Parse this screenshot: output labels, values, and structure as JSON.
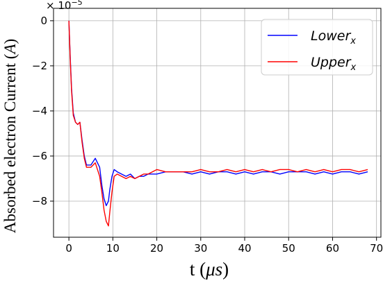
{
  "chart_data": {
    "type": "line",
    "xlabel_main": "t (",
    "xlabel_unit": "μs",
    "xlabel_close": ")",
    "ylabel": "Absorbed electron Current (",
    "ylabel_unit": "A",
    "ylabel_close": ")",
    "y_scale_base": "× 10",
    "y_scale_exp": "−5",
    "xlim": [
      -3.5,
      71
    ],
    "ylim": [
      -9.6,
      0.55
    ],
    "x_ticks": [
      0,
      10,
      20,
      30,
      40,
      50,
      60,
      70
    ],
    "x_tick_labels": [
      "0",
      "10",
      "20",
      "30",
      "40",
      "50",
      "60",
      "70"
    ],
    "y_ticks": [
      0,
      -2,
      -4,
      -6,
      -8
    ],
    "y_tick_labels": [
      "0",
      "−2",
      "−4",
      "−6",
      "−8"
    ],
    "grid": true,
    "legend_position": "top-right",
    "series": [
      {
        "name_main": "Lower",
        "name_sub": "x",
        "color": "#0000ff",
        "x": [
          0,
          0.3,
          0.6,
          1,
          1.5,
          2,
          2.5,
          3,
          3.5,
          4,
          5,
          6,
          6.5,
          7,
          7.5,
          8,
          8.5,
          9,
          9.3,
          9.8,
          10.3,
          11,
          12,
          13,
          14,
          15,
          16,
          17,
          18,
          19,
          20,
          22,
          24,
          26,
          28,
          30,
          32,
          34,
          36,
          38,
          40,
          42,
          44,
          46,
          48,
          50,
          52,
          54,
          56,
          58,
          60,
          62,
          64,
          66,
          68
        ],
        "values": [
          0,
          -1.6,
          -3.0,
          -4.1,
          -4.5,
          -4.6,
          -4.5,
          -5.3,
          -6.0,
          -6.4,
          -6.4,
          -6.1,
          -6.3,
          -6.5,
          -7.3,
          -7.9,
          -8.2,
          -8.0,
          -7.5,
          -6.9,
          -6.6,
          -6.7,
          -6.8,
          -6.9,
          -6.8,
          -7.0,
          -6.9,
          -6.9,
          -6.8,
          -6.8,
          -6.8,
          -6.7,
          -6.7,
          -6.7,
          -6.8,
          -6.7,
          -6.8,
          -6.7,
          -6.7,
          -6.8,
          -6.7,
          -6.8,
          -6.7,
          -6.7,
          -6.8,
          -6.7,
          -6.7,
          -6.7,
          -6.8,
          -6.7,
          -6.8,
          -6.7,
          -6.7,
          -6.8,
          -6.7
        ]
      },
      {
        "name_main": "Upper",
        "name_sub": "x",
        "color": "#ff0000",
        "x": [
          0,
          0.3,
          0.6,
          1,
          1.5,
          2,
          2.5,
          3,
          3.5,
          4,
          5,
          6,
          6.5,
          7,
          7.5,
          8,
          8.5,
          9,
          9.3,
          9.8,
          10.3,
          11,
          12,
          13,
          14,
          15,
          16,
          17,
          18,
          19,
          20,
          22,
          24,
          26,
          28,
          30,
          32,
          34,
          36,
          38,
          40,
          42,
          44,
          46,
          48,
          50,
          52,
          54,
          56,
          58,
          60,
          62,
          64,
          66,
          68
        ],
        "values": [
          0,
          -1.7,
          -3.1,
          -4.2,
          -4.5,
          -4.6,
          -4.5,
          -5.4,
          -6.1,
          -6.5,
          -6.5,
          -6.3,
          -6.6,
          -6.9,
          -7.6,
          -8.4,
          -8.9,
          -9.1,
          -8.5,
          -7.6,
          -6.9,
          -6.8,
          -6.9,
          -7.0,
          -6.9,
          -7.0,
          -6.9,
          -6.8,
          -6.8,
          -6.7,
          -6.6,
          -6.7,
          -6.7,
          -6.7,
          -6.7,
          -6.6,
          -6.7,
          -6.7,
          -6.6,
          -6.7,
          -6.6,
          -6.7,
          -6.6,
          -6.7,
          -6.6,
          -6.6,
          -6.7,
          -6.6,
          -6.7,
          -6.6,
          -6.7,
          -6.6,
          -6.6,
          -6.7,
          -6.6
        ]
      }
    ]
  }
}
